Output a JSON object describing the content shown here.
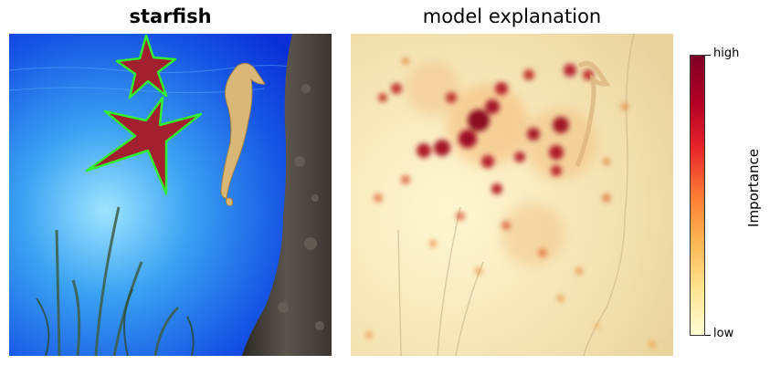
{
  "left_panel": {
    "title": "starfish"
  },
  "right_panel": {
    "title": "model explanation"
  },
  "colorbar": {
    "label": "Importance",
    "high_label": "high",
    "low_label": "low",
    "colors": [
      "#fffdd4",
      "#fde48e",
      "#feb652",
      "#fd7a33",
      "#e8262a",
      "#b30026",
      "#7f0026"
    ]
  },
  "scene": {
    "water_top": "#0a2fd6",
    "water_mid": "#2f8ff0",
    "water_glow": "#9fe4ff",
    "rock": "#4a4540",
    "outline": "#33ee33",
    "starfish": "#a3202e",
    "seahorse": "#d9b877"
  }
}
